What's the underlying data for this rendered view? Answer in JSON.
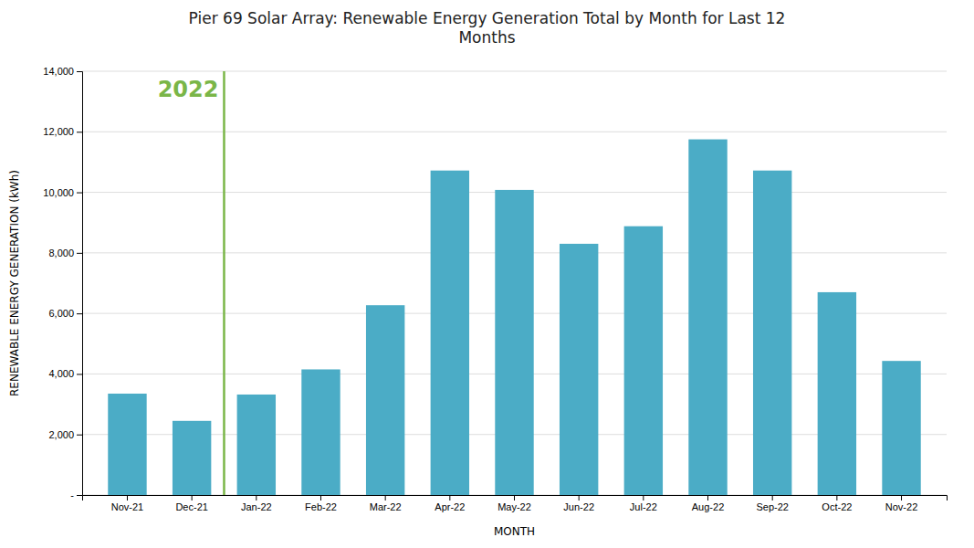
{
  "chart_data": {
    "type": "bar",
    "title": "Pier 69 Solar Array: Renewable Energy Generation Total by Month for Last 12\nMonths",
    "x_label": "MONTH",
    "y_label": "RENEWABLE ENERGY GENERATION (kWh)",
    "categories": [
      "Nov-21",
      "Dec-21",
      "Jan-22",
      "Feb-22",
      "Mar-22",
      "Apr-22",
      "May-22",
      "Jun-22",
      "Jul-22",
      "Aug-22",
      "Sep-22",
      "Oct-22",
      "Nov-22"
    ],
    "values": [
      3350,
      2450,
      3320,
      4150,
      6270,
      10720,
      10080,
      8300,
      8880,
      11750,
      10720,
      6700,
      4430
    ],
    "color": "#4BACC6",
    "ylim": [
      0,
      14000
    ],
    "yticks": [
      {
        "value": 0,
        "label": "-"
      },
      {
        "value": 2000,
        "label": "2,000"
      },
      {
        "value": 4000,
        "label": "4,000"
      },
      {
        "value": 6000,
        "label": "6,000"
      },
      {
        "value": 8000,
        "label": "8,000"
      },
      {
        "value": 10000,
        "label": "10,000"
      },
      {
        "value": 12000,
        "label": "12,000"
      },
      {
        "value": 14000,
        "label": "14,000"
      }
    ],
    "grid": true,
    "annotations": [
      {
        "text": "2022",
        "x": "Jan-22",
        "color": "#7AB648"
      }
    ]
  }
}
